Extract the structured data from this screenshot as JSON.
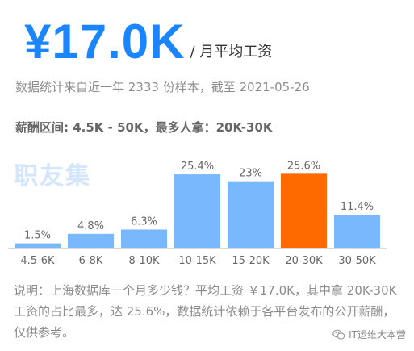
{
  "header": {
    "salary_value": "¥17.0K",
    "salary_unit": "/ 月平均工资",
    "sample_note": "数据统计来自近一年 2333 份样本，截至 2021-05-26",
    "range_summary": "薪酬区间: 4.5K - 50K，最多人拿：20K-30K"
  },
  "watermark": "职友集",
  "chart_data": {
    "type": "bar",
    "categories": [
      "4.5-6K",
      "6-8K",
      "8-10K",
      "10-15K",
      "15-20K",
      "20-30K",
      "30-50K"
    ],
    "values": [
      1.5,
      4.8,
      6.3,
      25.4,
      23,
      25.6,
      11.4
    ],
    "value_labels": [
      "1.5%",
      "4.8%",
      "6.3%",
      "25.4%",
      "23%",
      "25.6%",
      "11.4%"
    ],
    "title": "",
    "xlabel": "",
    "ylabel": "",
    "highlight_category": "20-30K",
    "colors": {
      "bar": "#7ab8fd",
      "highlight": "#ff6a00"
    }
  },
  "description": "说明：上海数据库一个月多少钱？平均工资 ￥17.0K，其中拿 20K-30K 工资的占比最多，达 25.6%，数据统计依赖于各平台发布的公开薪酬，仅供参考。",
  "footer": {
    "icon": "wechat-icon",
    "label": "IT运维大本营"
  }
}
